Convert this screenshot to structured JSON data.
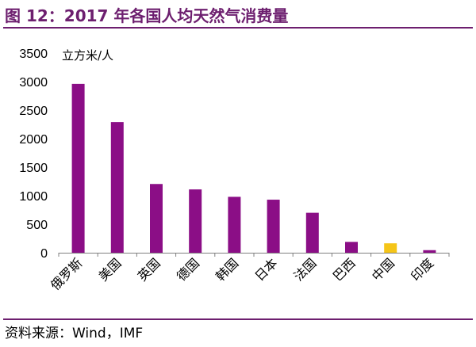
{
  "figure": {
    "title": "图 12：2017 年各国人均天然气消费量",
    "source": "资料来源：Wind，IMF"
  },
  "chart_data": {
    "type": "bar",
    "title": "",
    "ylabel": "立方米/人",
    "xlabel": "",
    "categories": [
      "俄罗斯",
      "美国",
      "英国",
      "德国",
      "韩国",
      "日本",
      "法国",
      "巴西",
      "中国",
      "印度"
    ],
    "values": [
      2960,
      2290,
      1205,
      1110,
      980,
      930,
      700,
      190,
      165,
      45
    ],
    "ylim": [
      0,
      3500
    ],
    "yticks": [
      0,
      500,
      1000,
      1500,
      2000,
      2500,
      3000,
      3500
    ],
    "grid": false,
    "legend": "none",
    "colors": {
      "bar": "#8b0e86",
      "highlight": "#f5c518",
      "highlight_category": "中国",
      "accent": "#6d1f6f"
    }
  }
}
